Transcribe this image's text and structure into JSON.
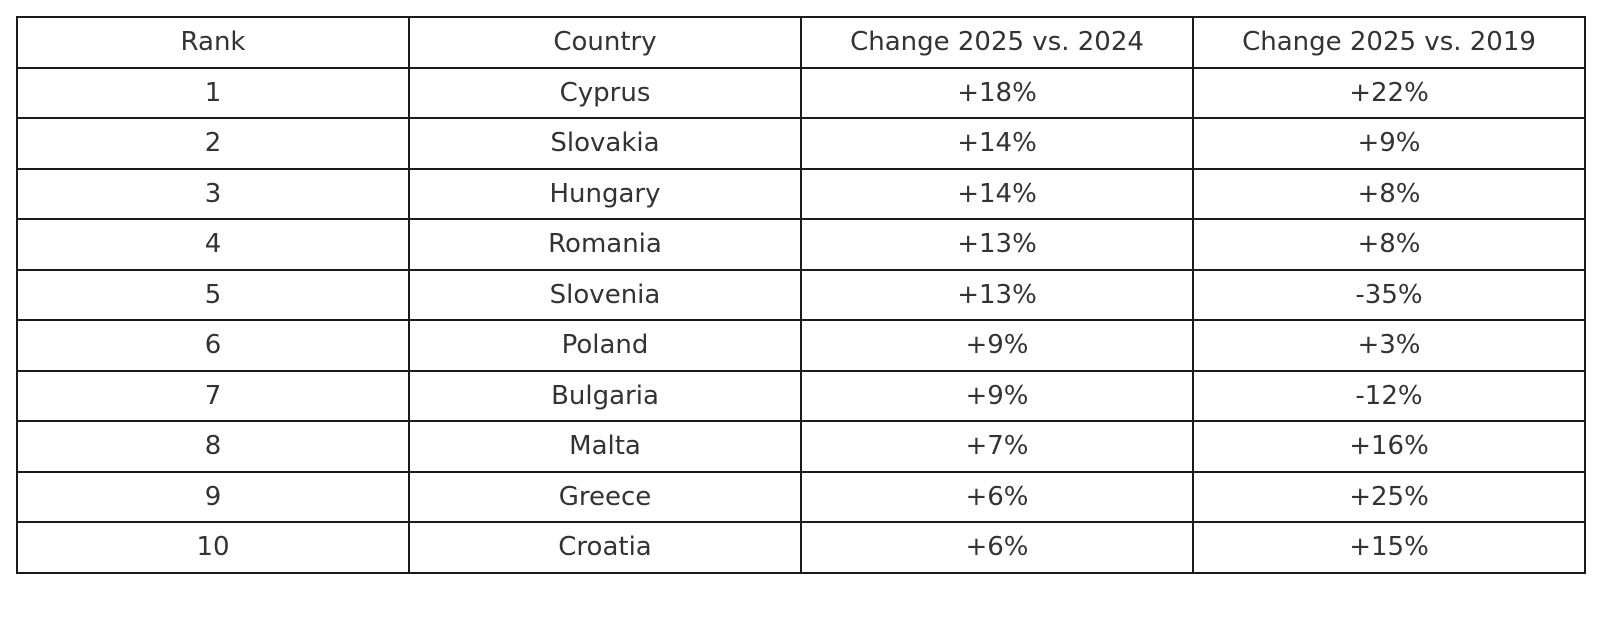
{
  "chart_data": {
    "type": "table",
    "columns": [
      "Rank",
      "Country",
      "Change 2025 vs. 2024",
      "Change 2025 vs. 2019"
    ],
    "rows": [
      [
        "1",
        "Cyprus",
        "+18%",
        "+22%"
      ],
      [
        "2",
        "Slovakia",
        "+14%",
        "+9%"
      ],
      [
        "3",
        "Hungary",
        "+14%",
        "+8%"
      ],
      [
        "4",
        "Romania",
        "+13%",
        "+8%"
      ],
      [
        "5",
        "Slovenia",
        "+13%",
        "-35%"
      ],
      [
        "6",
        "Poland",
        "+9%",
        "+3%"
      ],
      [
        "7",
        "Bulgaria",
        "+9%",
        "-12%"
      ],
      [
        "8",
        "Malta",
        "+7%",
        "+16%"
      ],
      [
        "9",
        "Greece",
        "+6%",
        "+25%"
      ],
      [
        "10",
        "Croatia",
        "+6%",
        "+15%"
      ]
    ]
  },
  "colors": {
    "text": "#333333",
    "border": "#1a1a1a",
    "background": "#ffffff"
  }
}
